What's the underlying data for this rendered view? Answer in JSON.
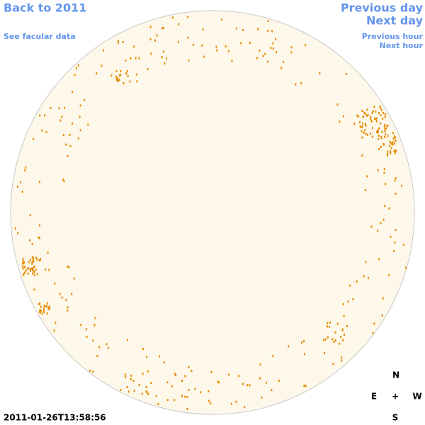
{
  "links": {
    "back": "Back to 2011",
    "facular": "See facular data",
    "previous_day": "Previous day",
    "next_day": "Next day",
    "previous_hour": "Previous hour",
    "next_hour": "Next hour"
  },
  "compass": {
    "north": "N",
    "east": "E",
    "center": "+",
    "west": "W",
    "south": "S"
  },
  "timestamp": "2011-01-26T13:58:56"
}
